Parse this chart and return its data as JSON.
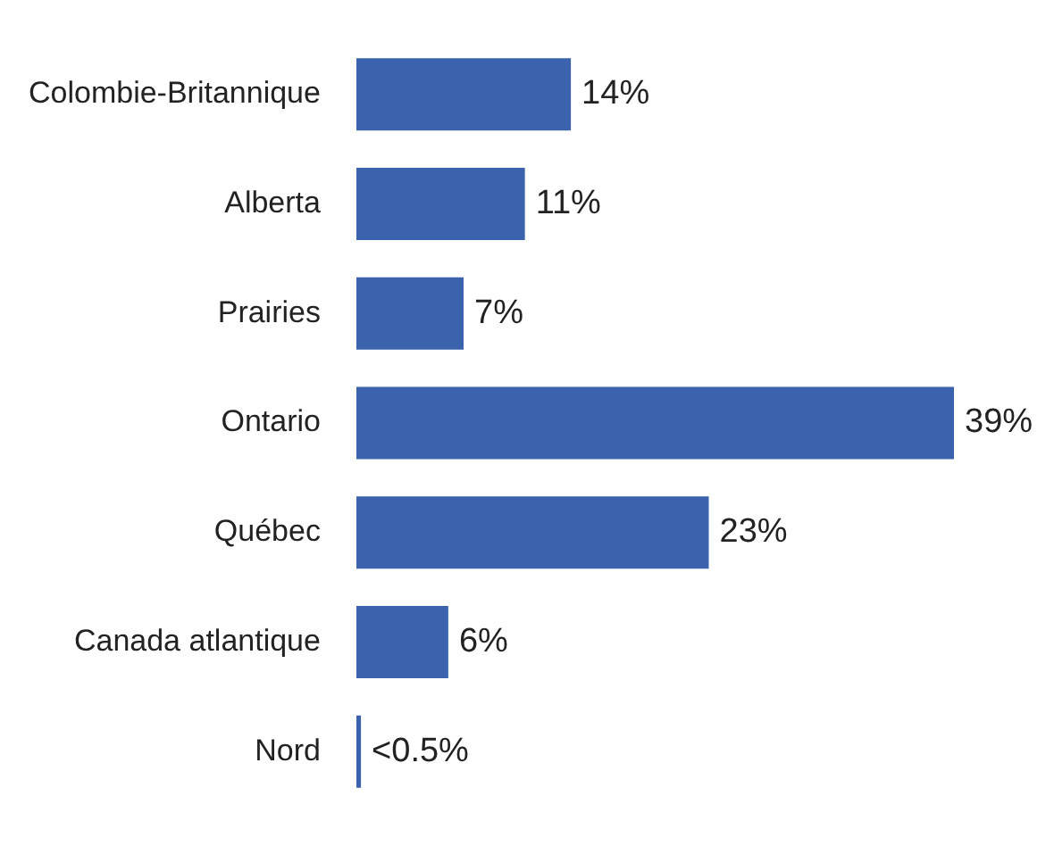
{
  "chart_data": {
    "type": "bar",
    "orientation": "horizontal",
    "categories": [
      "Colombie-Britannique",
      "Alberta",
      "Prairies",
      "Ontario",
      "Québec",
      "Canada atlantique",
      "Nord"
    ],
    "values": [
      14,
      11,
      7,
      39,
      23,
      6,
      0.3
    ],
    "value_labels": [
      "14%",
      "11%",
      "7%",
      "39%",
      "23%",
      "6%",
      "<0.5%"
    ],
    "color": "#3a62ad",
    "xlim": [
      0,
      39
    ],
    "tick_labels": "y"
  }
}
